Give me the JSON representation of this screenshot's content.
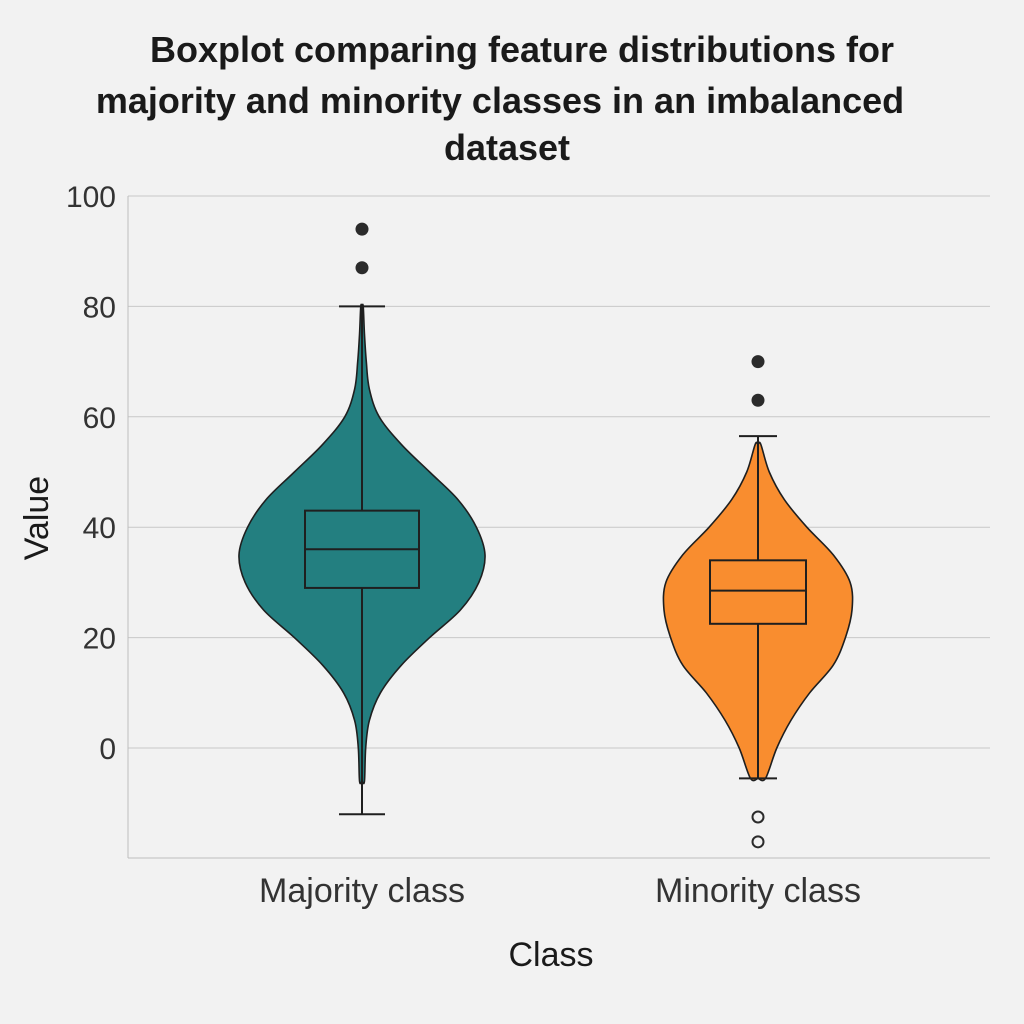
{
  "chart_data": {
    "type": "violin",
    "title": "Boxplot comparing feature distributions for majority and minority classes in an imbalanced dataset",
    "title_lines": [
      "Boxplot comparing feature distributions for",
      "majority and minority classes in an imbalanced",
      "dataset"
    ],
    "xlabel": "Class",
    "ylabel": "Value",
    "ylim": [
      -20,
      100
    ],
    "yticks": [
      0,
      20,
      40,
      60,
      80,
      100
    ],
    "ytick_labels": [
      "0",
      "20",
      "40",
      "60",
      "80",
      "100"
    ],
    "grid": "horizontal",
    "categories": [
      "Majority class",
      "Minority class"
    ],
    "series": [
      {
        "category": "Majority class",
        "color": "#237f80",
        "q1": 29,
        "median": 36,
        "q3": 43,
        "whisker_low": -12,
        "whisker_high": 80,
        "violin_bottom": -6,
        "violin_top": 80,
        "outliers": [
          94,
          87
        ],
        "outlier_style": "filled",
        "density": [
          [
            -6,
            0.02
          ],
          [
            0,
            0.03
          ],
          [
            5,
            0.06
          ],
          [
            10,
            0.15
          ],
          [
            15,
            0.32
          ],
          [
            20,
            0.55
          ],
          [
            25,
            0.8
          ],
          [
            30,
            0.95
          ],
          [
            35,
            1.0
          ],
          [
            40,
            0.93
          ],
          [
            45,
            0.78
          ],
          [
            50,
            0.55
          ],
          [
            55,
            0.32
          ],
          [
            60,
            0.14
          ],
          [
            65,
            0.06
          ],
          [
            70,
            0.035
          ],
          [
            75,
            0.02
          ],
          [
            80,
            0.01
          ]
        ]
      },
      {
        "category": "Minority class",
        "color": "#f98d2f",
        "q1": 22.5,
        "median": 28.5,
        "q3": 34,
        "whisker_low": -5.5,
        "whisker_high": 56.5,
        "violin_bottom": -5.5,
        "violin_top": 55,
        "outliers": [
          70,
          63
        ],
        "outliers_hollow": [
          -12.5,
          -17
        ],
        "outlier_style": "filled",
        "density": [
          [
            -5.5,
            0.08
          ],
          [
            0,
            0.2
          ],
          [
            5,
            0.35
          ],
          [
            10,
            0.55
          ],
          [
            15,
            0.8
          ],
          [
            20,
            0.93
          ],
          [
            25,
            1.0
          ],
          [
            30,
            0.98
          ],
          [
            35,
            0.8
          ],
          [
            40,
            0.52
          ],
          [
            45,
            0.28
          ],
          [
            50,
            0.12
          ],
          [
            55,
            0.03
          ]
        ]
      }
    ]
  }
}
